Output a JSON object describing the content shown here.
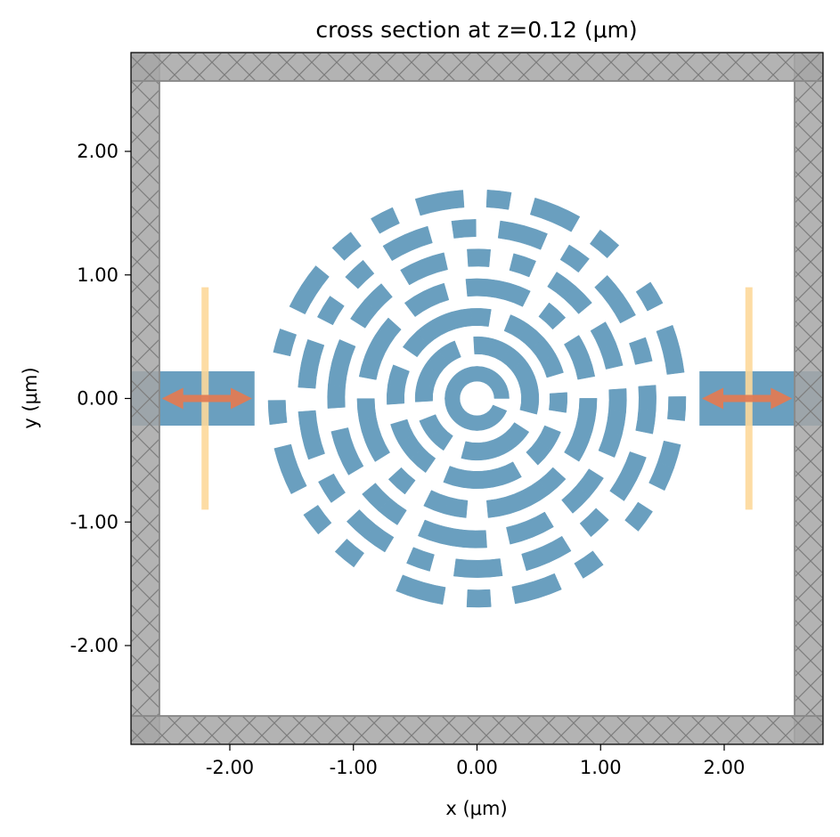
{
  "chart_data": {
    "type": "scatter",
    "title": "cross section at z=0.12 (μm)",
    "xlabel": "x (μm)",
    "ylabel": "y (μm)",
    "xlim": [
      -2.8,
      2.8
    ],
    "ylim": [
      -2.8,
      2.8
    ],
    "x_ticks": [
      {
        "value": -2.0,
        "label": "-2.00"
      },
      {
        "value": -1.0,
        "label": "-1.00"
      },
      {
        "value": 0.0,
        "label": "0.00"
      },
      {
        "value": 1.0,
        "label": "1.00"
      },
      {
        "value": 2.0,
        "label": "2.00"
      }
    ],
    "y_ticks": [
      {
        "value": 2.0,
        "label": "2.00"
      },
      {
        "value": 1.0,
        "label": "1.00"
      },
      {
        "value": 0.0,
        "label": "0.00"
      },
      {
        "value": -1.0,
        "label": "-1.00"
      },
      {
        "value": -2.0,
        "label": "-2.00"
      }
    ],
    "grid": false,
    "pml_boundaries": {
      "inner_half_width": 2.57,
      "color": "#999999"
    },
    "waveguides": [
      {
        "x_from": -2.8,
        "x_to": -1.8,
        "half_width": 0.22
      },
      {
        "x_from": 1.8,
        "x_to": 2.8,
        "half_width": 0.22
      }
    ],
    "sources": [
      {
        "x": -2.2,
        "y_from": -0.9,
        "y_to": 0.9,
        "arrow_from": -2.55,
        "arrow_to": -1.82
      },
      {
        "x": 2.2,
        "y_from": -0.9,
        "y_to": 0.9,
        "arrow_from": 1.82,
        "arrow_to": 2.55
      }
    ],
    "rings": [
      {
        "radius": 0.2,
        "width": 0.12,
        "segments": 16,
        "pattern": "1111111111111110"
      },
      {
        "radius": 0.43,
        "width": 0.14,
        "segments": 20,
        "pattern": "11110111101101111011"
      },
      {
        "radius": 0.66,
        "width": 0.14,
        "segments": 28,
        "pattern": "1101111101101110111101101011"
      },
      {
        "radius": 0.9,
        "width": 0.14,
        "segments": 34,
        "pattern": "1110110111011101011011110111011010"
      },
      {
        "radius": 1.14,
        "width": 0.14,
        "segments": 40,
        "pattern": "1011011011101101101110110110111011011010"
      },
      {
        "radius": 1.38,
        "width": 0.14,
        "segments": 46,
        "pattern": "1101010110110101101011011010110110101101011010"
      },
      {
        "radius": 1.62,
        "width": 0.14,
        "segments": 54,
        "pattern": "101101001011010100110101101001011010110100101101011010"
      }
    ],
    "colors": {
      "structure": "#6a9fbf",
      "pml_fill": "#a6a6a6",
      "pml_edge": "#8a8a8a",
      "source_line": "#fdd99b",
      "arrow": "#e07b54"
    }
  }
}
